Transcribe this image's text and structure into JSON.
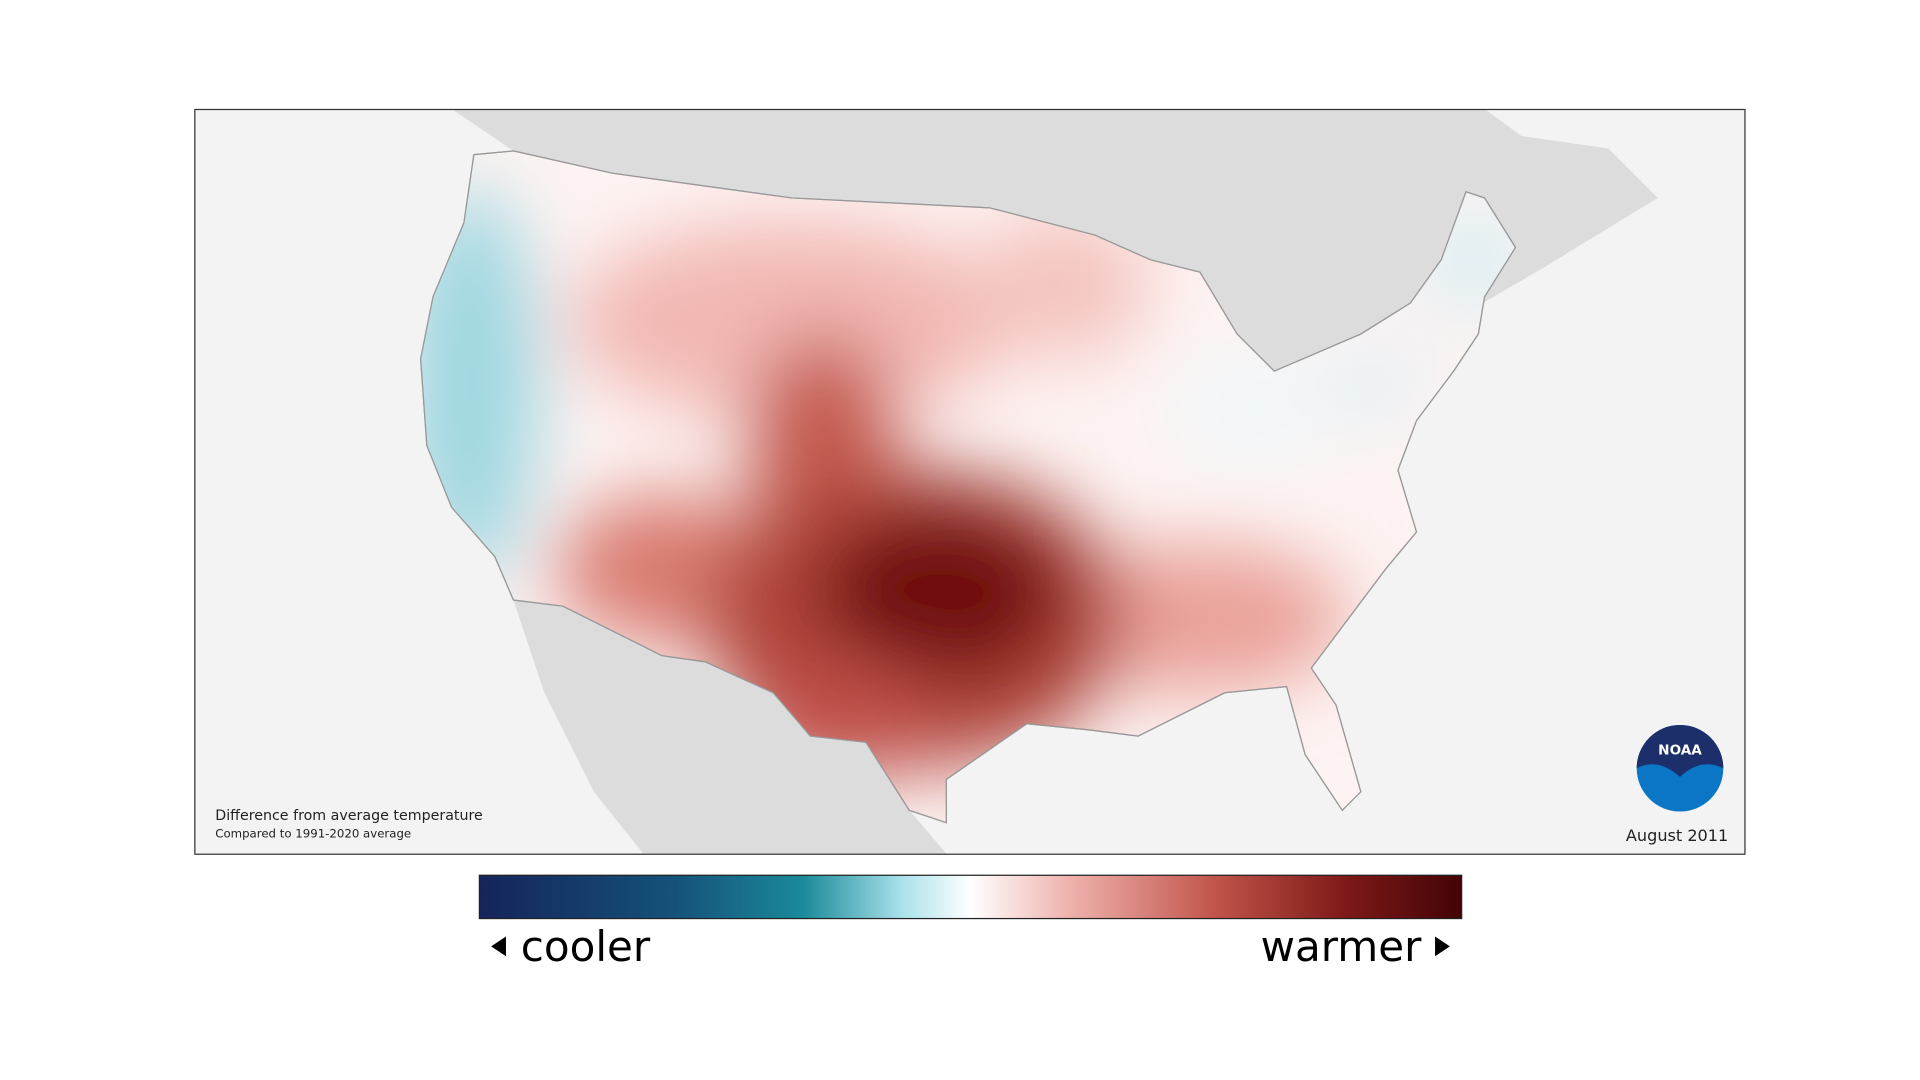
{
  "map": {
    "caption": {
      "title": "Difference from average temperature",
      "subtitle": "Compared to 1991-2020 average"
    },
    "date": "August 2011",
    "logo": "NOAA"
  },
  "legend": {
    "low_label": "cooler",
    "high_label": "warmer"
  }
}
